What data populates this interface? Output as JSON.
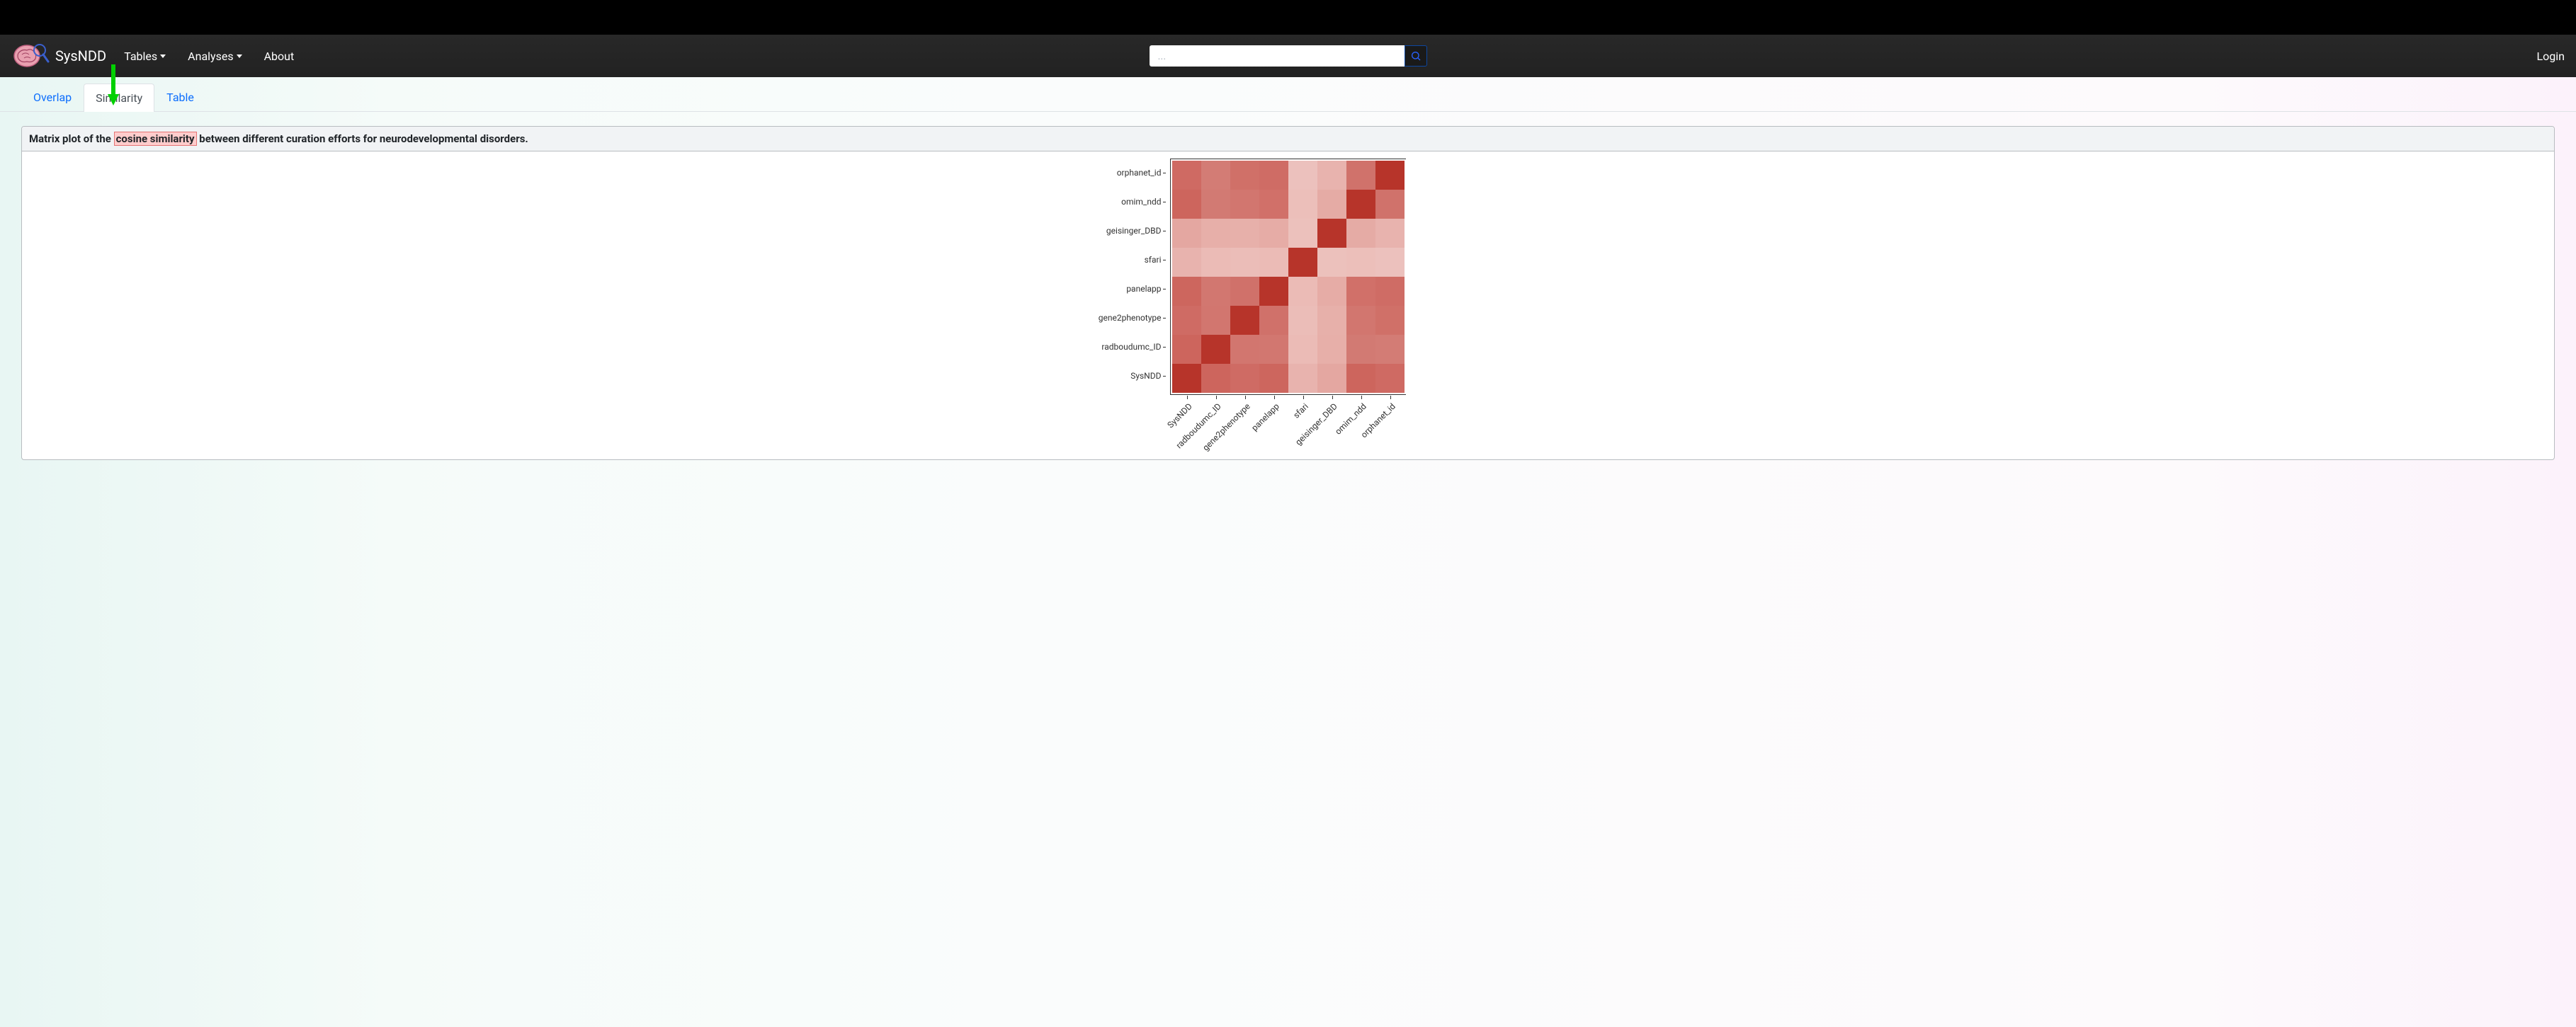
{
  "header": {
    "brand": "SysNDD",
    "nav": {
      "tables": "Tables",
      "analyses": "Analyses",
      "about": "About"
    },
    "search_placeholder": "...",
    "login": "Login"
  },
  "tabs": {
    "overlap": "Overlap",
    "similarity": "Similarity",
    "table": "Table",
    "active": "similarity"
  },
  "panel": {
    "title_prefix": "Matrix plot of the ",
    "title_highlight": "cosine similarity",
    "title_suffix": " between different curation efforts for neurodevelopmental disorders."
  },
  "heatmap": {
    "type": "heatmap",
    "y_labels": [
      "orphanet_id",
      "omim_ndd",
      "geisinger_DBD",
      "sfari",
      "panelapp",
      "gene2phenotype",
      "radboudumc_ID",
      "SysNDD"
    ],
    "x_labels": [
      "SysNDD",
      "radboudumc_ID",
      "gene2phenotype",
      "panelapp",
      "sfari",
      "geisinger_DBD",
      "omim_ndd",
      "orphanet_id"
    ],
    "cell_colors": [
      [
        "#cf6a63",
        "#d37c75",
        "#d07068",
        "#cf6c65",
        "#ecc1bd",
        "#e8b3ae",
        "#d0726b",
        "#b7342a"
      ],
      [
        "#cd655d",
        "#d27a73",
        "#d2766f",
        "#d17069",
        "#ecbfba",
        "#e5aba5",
        "#b7342a",
        "#d0726b"
      ],
      [
        "#e4a7a1",
        "#e7afa9",
        "#e7b0aa",
        "#e6aca6",
        "#ecc1bc",
        "#b7342a",
        "#e5aba5",
        "#e8b3ae"
      ],
      [
        "#e8b3ae",
        "#ebbbb6",
        "#ebbdb8",
        "#ebbbb6",
        "#b7342a",
        "#ecc1bc",
        "#ecbfba",
        "#ecc1bd"
      ],
      [
        "#cd665e",
        "#d27770",
        "#d0716a",
        "#b7342a",
        "#ebbbb6",
        "#e6aca6",
        "#d17069",
        "#cf6c65"
      ],
      [
        "#cf6b64",
        "#d2766f",
        "#b7342a",
        "#d0716a",
        "#ebbdb8",
        "#e7b0aa",
        "#d2766f",
        "#d07068"
      ],
      [
        "#cd655d",
        "#b7342a",
        "#d2766f",
        "#d27770",
        "#ebbbb6",
        "#e7afa9",
        "#d27a73",
        "#d37c75"
      ],
      [
        "#b7342a",
        "#cd655d",
        "#cf6b64",
        "#cd665e",
        "#e8b3ae",
        "#e4a7a1",
        "#cd655d",
        "#cf6a63"
      ]
    ],
    "cell_size": 41,
    "background_color": "#ffffff",
    "border_color": "#333333",
    "label_fontsize": 12
  },
  "colors": {
    "navbar_bg": "#282828",
    "page_bg_left": "#e8f6f3",
    "page_bg_right": "#fcf2fb",
    "link": "#0d6efd",
    "highlight_bg": "#ffcccc",
    "highlight_border": "#e57575",
    "arrow": "#00d000"
  }
}
